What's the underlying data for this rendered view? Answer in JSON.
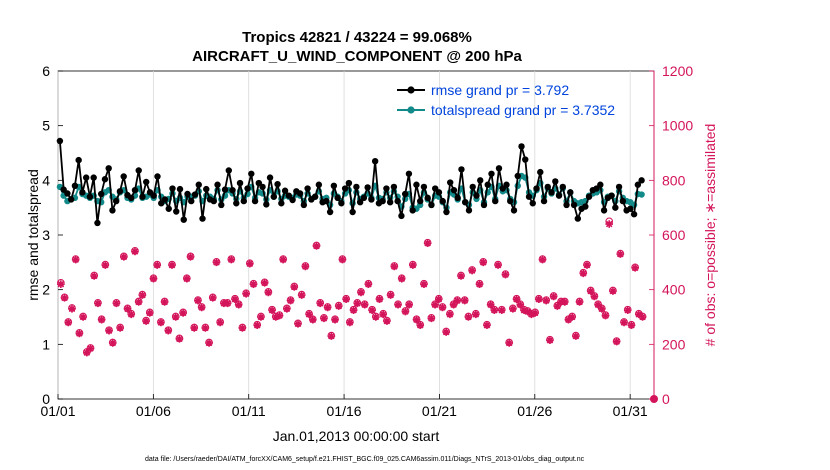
{
  "chart_data": {
    "type": "line",
    "title": [
      "Tropics 42821 / 43224 = 99.068%",
      "AIRCRAFT_U_WIND_COMPONENT @ 200 hPa"
    ],
    "xlabel": "Jan.01,2013 00:00:00 start",
    "ylabel_left": "rmse and totalspread",
    "ylabel_right": "# of obs: o=possible; ∗=assimilated",
    "x_ticks": [
      "01/01",
      "01/06",
      "01/11",
      "01/16",
      "01/21",
      "01/26",
      "01/31"
    ],
    "x_tick_days": [
      0,
      5,
      10,
      15,
      20,
      25,
      30
    ],
    "xlim_days": [
      0,
      31.25
    ],
    "ylim_left": [
      0,
      6
    ],
    "ylim_right": [
      0,
      1200
    ],
    "y_ticks_left": [
      0,
      1,
      2,
      3,
      4,
      5,
      6
    ],
    "y_ticks_right": [
      0,
      200,
      400,
      600,
      800,
      1000,
      1200
    ],
    "footer": "data file: /Users/raeder/DAI/ATM_forcXX/CAM6_setup/f.e21.FHIST_BGC.f09_025.CAM6assim.011/Diags_NTrS_2013-01/obs_diag_output.nc",
    "colors": {
      "rmse": "#000000",
      "spread": "#138a8a",
      "obs": "#d4145a",
      "legend_text": "#0044dd"
    },
    "series": [
      {
        "name": "rmse",
        "legend": "rmse grand pr = 3.792",
        "axis": "left",
        "values": [
          4.72,
          3.83,
          3.76,
          3.65,
          3.9,
          4.37,
          3.78,
          4.05,
          3.7,
          4.05,
          3.22,
          3.75,
          4.02,
          4.22,
          3.45,
          3.62,
          3.8,
          4.07,
          3.73,
          3.68,
          3.82,
          4.18,
          3.7,
          3.97,
          3.78,
          3.72,
          4.07,
          3.58,
          3.65,
          3.48,
          3.85,
          3.43,
          3.84,
          3.28,
          3.75,
          3.62,
          3.74,
          3.92,
          3.3,
          3.84,
          3.65,
          3.62,
          3.92,
          3.55,
          3.83,
          4.18,
          3.82,
          3.58,
          3.95,
          3.62,
          3.85,
          4.12,
          3.62,
          3.95,
          3.88,
          3.56,
          4.05,
          3.7,
          3.93,
          3.58,
          3.81,
          3.72,
          3.64,
          3.8,
          3.76,
          3.55,
          3.85,
          3.65,
          3.7,
          3.92,
          3.6,
          3.62,
          3.42,
          3.9,
          3.68,
          3.58,
          3.85,
          3.95,
          3.42,
          3.88,
          3.6,
          3.68,
          3.87,
          3.65,
          4.35,
          3.58,
          3.62,
          3.85,
          3.6,
          3.88,
          3.62,
          3.35,
          3.75,
          4.12,
          3.45,
          3.92,
          3.62,
          3.88,
          3.68,
          3.55,
          3.85,
          3.78,
          3.62,
          3.42,
          3.96,
          3.82,
          3.68,
          4.2,
          3.6,
          3.45,
          3.88,
          3.72,
          4.0,
          3.55,
          3.92,
          4.12,
          3.62,
          4.22,
          3.85,
          3.92,
          3.62,
          3.45,
          4.08,
          4.62,
          4.38,
          3.7,
          3.58,
          3.85,
          4.15,
          3.62,
          3.88,
          3.78,
          3.98,
          3.72,
          3.88,
          3.55,
          3.78,
          3.55,
          3.3,
          3.48,
          3.52,
          3.7,
          3.82,
          3.85,
          3.92,
          3.45,
          3.68,
          3.72,
          3.5,
          3.88,
          3.62,
          3.45,
          3.48,
          3.38,
          3.92,
          4.0
        ],
        "marker": "filled-circle"
      },
      {
        "name": "totalspread",
        "legend": "totalspread grand pr = 3.7352",
        "axis": "left",
        "values": [
          3.88,
          3.72,
          3.62,
          3.66,
          3.68,
          3.88,
          3.75,
          3.72,
          3.68,
          3.72,
          3.62,
          3.6,
          3.78,
          3.82,
          3.7,
          3.65,
          3.78,
          3.82,
          3.68,
          3.65,
          3.72,
          3.85,
          3.68,
          3.7,
          3.74,
          3.68,
          3.82,
          3.7,
          3.62,
          3.66,
          3.76,
          3.62,
          3.68,
          3.6,
          3.7,
          3.7,
          3.72,
          3.8,
          3.62,
          3.72,
          3.7,
          3.66,
          3.82,
          3.65,
          3.72,
          3.82,
          3.76,
          3.66,
          3.8,
          3.68,
          3.75,
          3.88,
          3.68,
          3.78,
          3.76,
          3.65,
          3.82,
          3.7,
          3.8,
          3.66,
          3.72,
          3.7,
          3.68,
          3.74,
          3.72,
          3.62,
          3.76,
          3.66,
          3.7,
          3.8,
          3.66,
          3.68,
          3.55,
          3.76,
          3.7,
          3.62,
          3.76,
          3.82,
          3.58,
          3.78,
          3.66,
          3.7,
          3.76,
          3.68,
          3.9,
          3.68,
          3.66,
          3.78,
          3.68,
          3.8,
          3.7,
          3.52,
          3.66,
          3.75,
          3.5,
          3.48,
          3.55,
          3.78,
          3.65,
          3.55,
          3.72,
          3.7,
          3.6,
          3.5,
          3.78,
          3.74,
          3.65,
          3.85,
          3.6,
          3.55,
          3.78,
          3.66,
          3.82,
          3.6,
          3.78,
          3.88,
          3.66,
          3.9,
          3.8,
          3.82,
          3.66,
          3.6,
          3.9,
          4.08,
          4.05,
          3.78,
          3.72,
          3.82,
          3.95,
          3.7,
          3.85,
          3.76,
          3.85,
          3.74,
          3.85,
          3.62,
          3.78,
          3.62,
          3.58,
          3.6,
          3.62,
          3.72,
          3.76,
          3.78,
          3.82,
          3.6,
          3.7,
          3.72,
          3.62,
          3.8,
          3.68,
          3.62,
          3.6,
          3.55,
          3.75,
          3.74
        ],
        "marker": "filled-circle"
      },
      {
        "name": "obs_assimilated",
        "axis": "right",
        "marker": "asterisk",
        "values": [
          420,
          370,
          280,
          330,
          510,
          240,
          300,
          170,
          185,
          450,
          350,
          290,
          490,
          250,
          205,
          350,
          260,
          520,
          330,
          310,
          540,
          355,
          380,
          285,
          315,
          440,
          490,
          280,
          355,
          250,
          490,
          300,
          220,
          315,
          440,
          520,
          260,
          360,
          335,
          260,
          205,
          370,
          500,
          280,
          350,
          350,
          510,
          365,
          345,
          260,
          385,
          495,
          420,
          270,
          300,
          425,
          390,
          325,
          300,
          305,
          510,
          330,
          360,
          410,
          275,
          380,
          485,
          310,
          290,
          560,
          350,
          295,
          335,
          230,
          290,
          340,
          510,
          365,
          280,
          325,
          350,
          390,
          345,
          420,
          325,
          300,
          365,
          310,
          285,
          380,
          485,
          345,
          440,
          320,
          345,
          490,
          290,
          270,
          420,
          570,
          295,
          345,
          365,
          335,
          245,
          310,
          345,
          360,
          450,
          360,
          300,
          470,
          310,
          420,
          500,
          270,
          345,
          325,
          490,
          325,
          455,
          205,
          330,
          365,
          345,
          325,
          320,
          310,
          315,
          365,
          510,
          360,
          215,
          375,
          340,
          355,
          355,
          290,
          300,
          230,
          355,
          460,
          490,
          395,
          375,
          345,
          330,
          305,
          640,
          395,
          210,
          530,
          280,
          325,
          270,
          480,
          310,
          300
        ]
      },
      {
        "name": "obs_possible",
        "axis": "right",
        "marker": "open-circle",
        "values": [
          425,
          372,
          282,
          333,
          512,
          242,
          302,
          172,
          187,
          452,
          352,
          292,
          492,
          252,
          207,
          352,
          262,
          522,
          332,
          312,
          542,
          357,
          382,
          287,
          317,
          442,
          492,
          282,
          357,
          252,
          492,
          302,
          222,
          317,
          442,
          522,
          262,
          362,
          337,
          262,
          207,
          372,
          502,
          282,
          352,
          352,
          512,
          367,
          347,
          262,
          387,
          497,
          422,
          272,
          302,
          427,
          392,
          327,
          302,
          307,
          512,
          332,
          362,
          412,
          277,
          382,
          487,
          312,
          292,
          562,
          352,
          297,
          337,
          232,
          292,
          342,
          512,
          367,
          282,
          327,
          352,
          392,
          347,
          422,
          327,
          302,
          367,
          312,
          287,
          382,
          487,
          347,
          442,
          322,
          347,
          492,
          292,
          272,
          422,
          572,
          297,
          347,
          367,
          337,
          247,
          312,
          347,
          362,
          452,
          362,
          302,
          472,
          312,
          422,
          502,
          272,
          347,
          327,
          492,
          327,
          457,
          207,
          332,
          367,
          347,
          327,
          322,
          312,
          317,
          367,
          512,
          362,
          217,
          377,
          342,
          357,
          357,
          292,
          302,
          232,
          357,
          462,
          492,
          397,
          377,
          347,
          332,
          307,
          650,
          397,
          212,
          532,
          282,
          327,
          272,
          482,
          312,
          302
        ]
      }
    ],
    "annotations": [
      "0 obs marker at right end of x-axis"
    ]
  }
}
